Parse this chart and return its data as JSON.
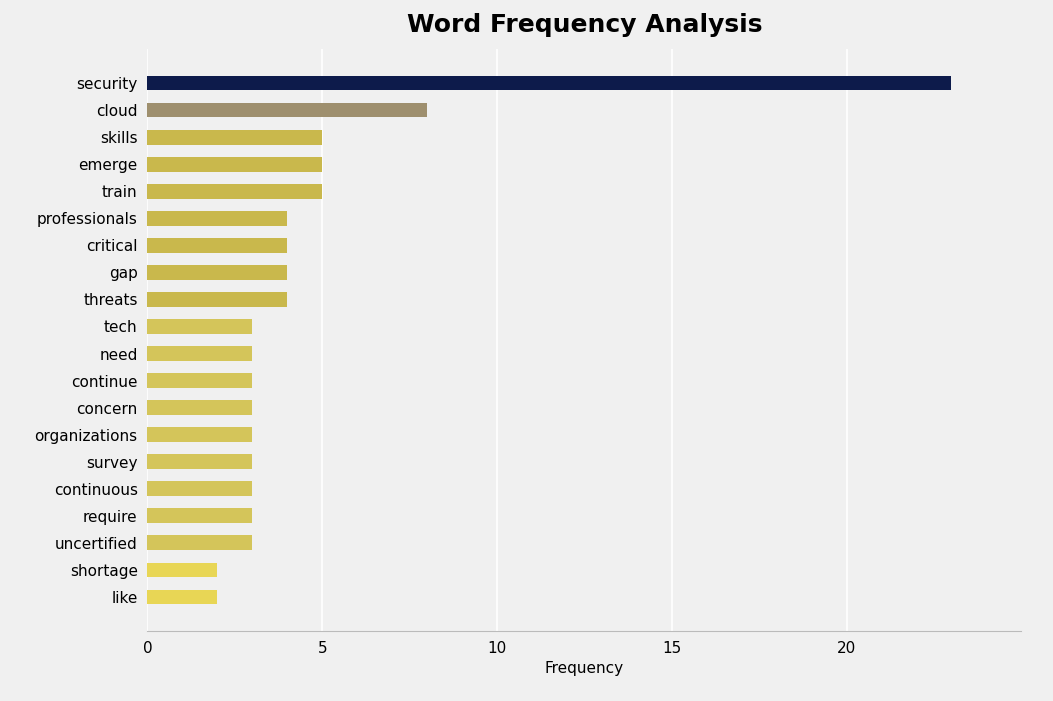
{
  "title": "Word Frequency Analysis",
  "categories": [
    "security",
    "cloud",
    "skills",
    "emerge",
    "train",
    "professionals",
    "critical",
    "gap",
    "threats",
    "tech",
    "need",
    "continue",
    "concern",
    "organizations",
    "survey",
    "continuous",
    "require",
    "uncertified",
    "shortage",
    "like"
  ],
  "values": [
    23,
    8,
    5,
    5,
    5,
    4,
    4,
    4,
    4,
    3,
    3,
    3,
    3,
    3,
    3,
    3,
    3,
    3,
    2,
    2
  ],
  "colors": [
    "#0d1b4b",
    "#9e8f6e",
    "#c9b84c",
    "#c9b84c",
    "#c9b84c",
    "#c9b84c",
    "#c9b84c",
    "#c9b84c",
    "#c9b84c",
    "#d4c55a",
    "#d4c55a",
    "#d4c55a",
    "#d4c55a",
    "#d4c55a",
    "#d4c55a",
    "#d4c55a",
    "#d4c55a",
    "#d4c55a",
    "#e8d655",
    "#e8d655"
  ],
  "xlabel": "Frequency",
  "ylabel": "",
  "xlim": [
    0,
    25
  ],
  "xticks": [
    0,
    5,
    10,
    15,
    20
  ],
  "background_color": "#f0f0f0",
  "plot_bg_color": "#f0f0f0",
  "title_fontsize": 18,
  "label_fontsize": 11,
  "tick_fontsize": 11,
  "bar_height": 0.55
}
